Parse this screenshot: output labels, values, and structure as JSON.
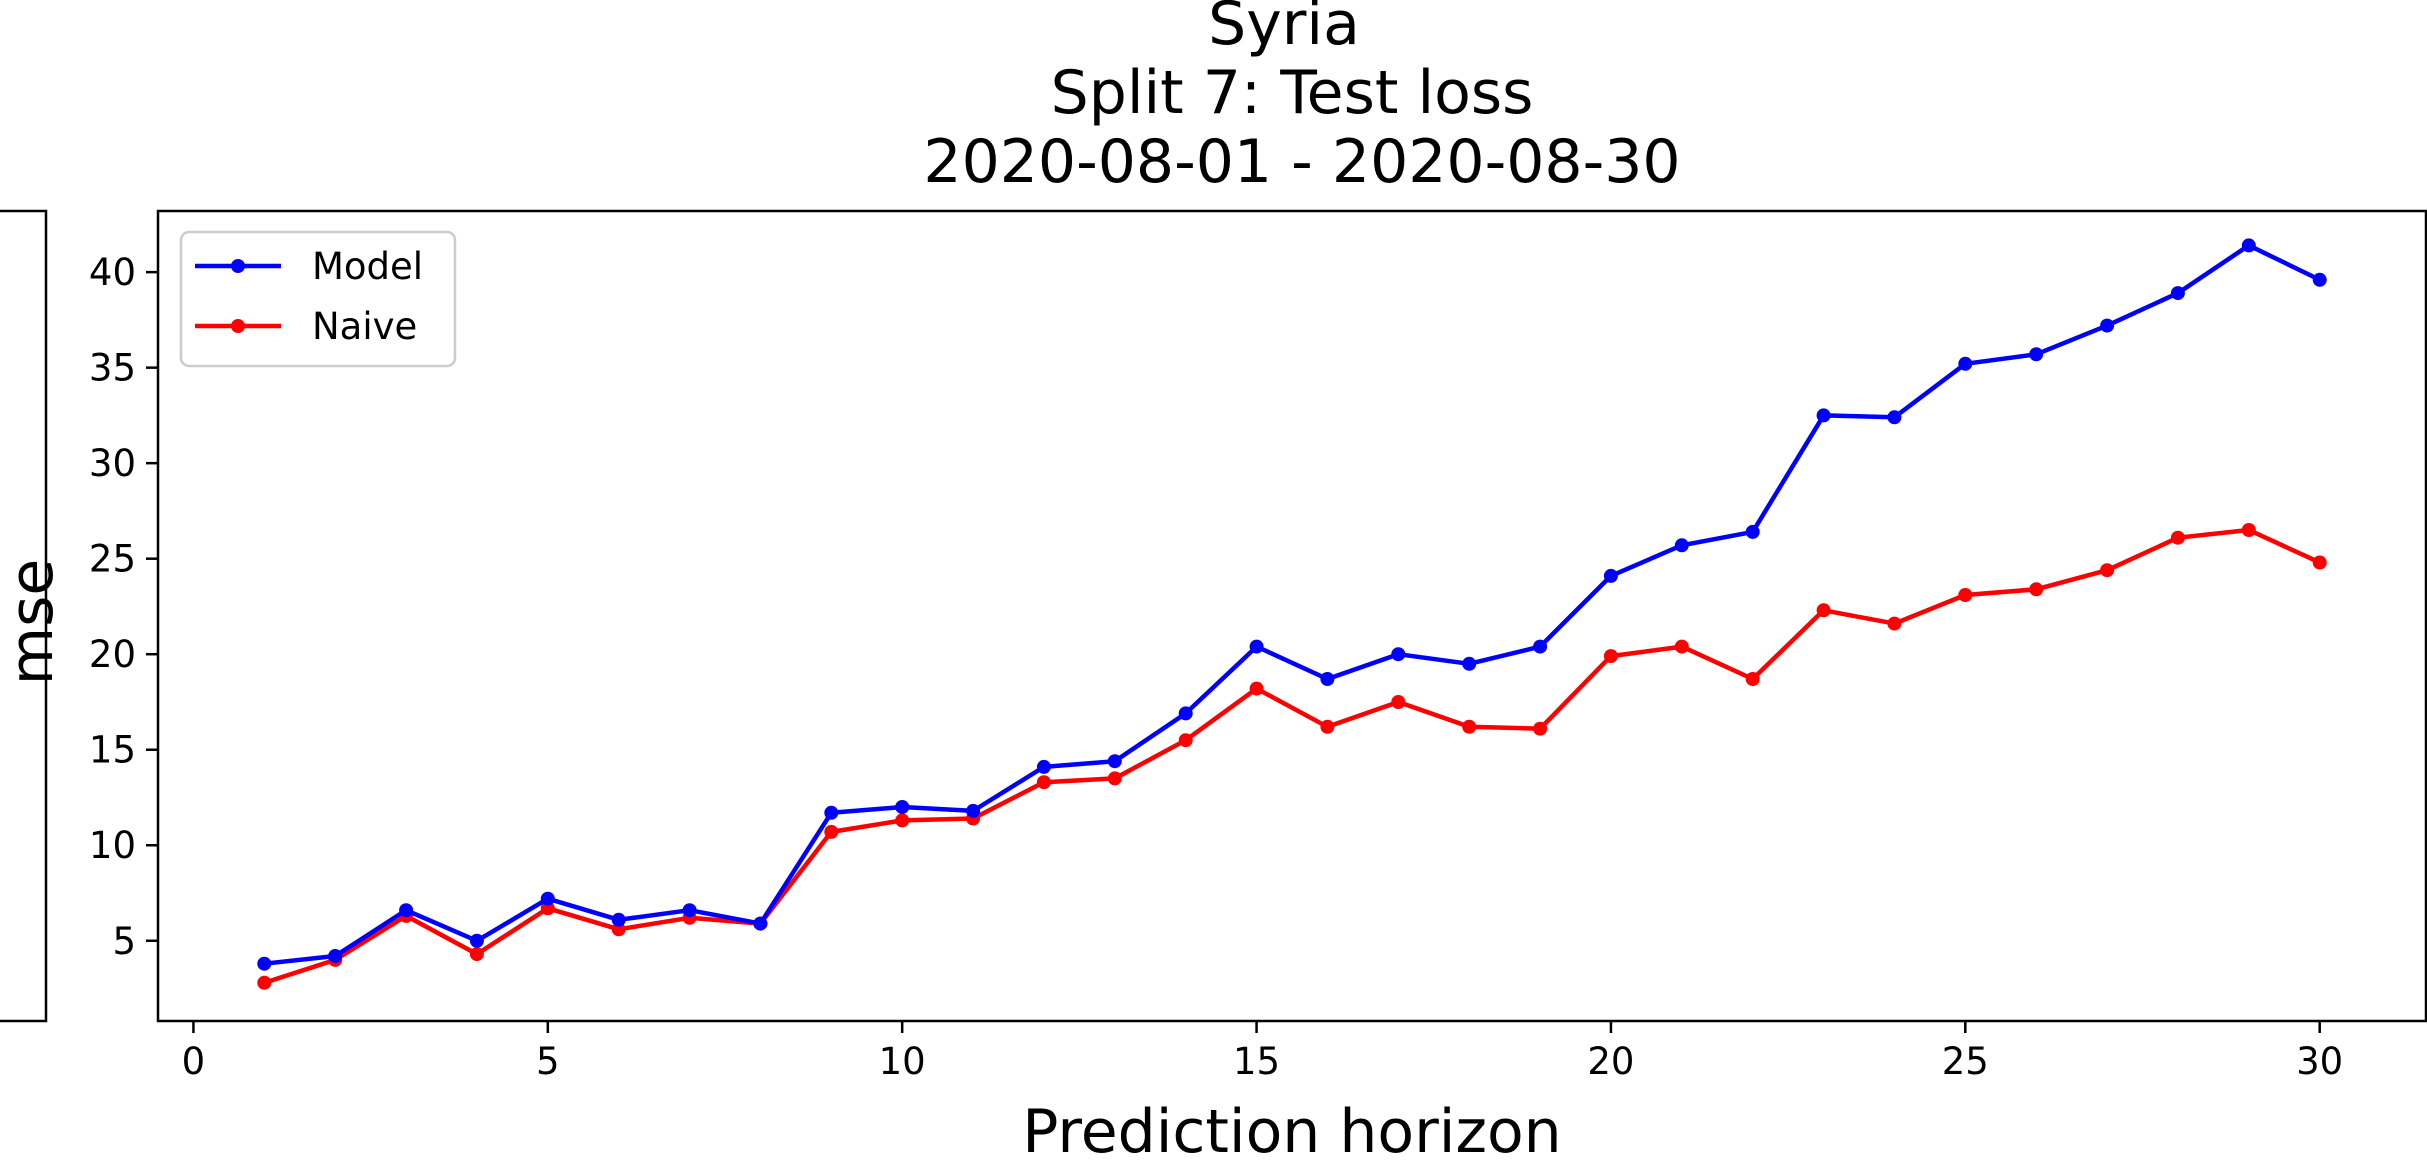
{
  "chart_data": {
    "type": "line",
    "title_lines": [
      "Syria",
      "Split 7: Test loss",
      "2020-08-01 - 2020-08-30"
    ],
    "xlabel": "Prediction horizon",
    "ylabel": "mse",
    "xlim": [
      -0.5,
      31.5
    ],
    "ylim": [
      0.8,
      43.2
    ],
    "xticks": [
      0,
      5,
      10,
      15,
      20,
      25,
      30
    ],
    "yticks": [
      5,
      10,
      15,
      20,
      25,
      30,
      35,
      40
    ],
    "x": [
      1,
      2,
      3,
      4,
      5,
      6,
      7,
      8,
      9,
      10,
      11,
      12,
      13,
      14,
      15,
      16,
      17,
      18,
      19,
      20,
      21,
      22,
      23,
      24,
      25,
      26,
      27,
      28,
      29,
      30
    ],
    "series": [
      {
        "name": "Model",
        "color": "#0000ff",
        "values": [
          3.8,
          4.2,
          6.6,
          5.0,
          7.2,
          6.1,
          6.6,
          5.9,
          11.7,
          12.0,
          11.8,
          14.1,
          14.4,
          16.9,
          20.4,
          18.7,
          20.0,
          19.5,
          20.4,
          24.1,
          25.7,
          26.4,
          32.5,
          32.4,
          35.2,
          35.7,
          37.2,
          38.9,
          41.4,
          39.6
        ]
      },
      {
        "name": "Naive",
        "color": "#ff0000",
        "values": [
          2.8,
          4.0,
          6.3,
          4.3,
          6.7,
          5.6,
          6.2,
          5.9,
          10.7,
          11.3,
          11.4,
          13.3,
          13.5,
          15.5,
          18.2,
          16.2,
          17.5,
          16.2,
          16.1,
          19.9,
          20.4,
          18.7,
          22.3,
          21.6,
          23.1,
          23.4,
          24.4,
          26.1,
          26.5,
          24.8
        ]
      }
    ],
    "legend_position": "upper left",
    "grid": false
  }
}
